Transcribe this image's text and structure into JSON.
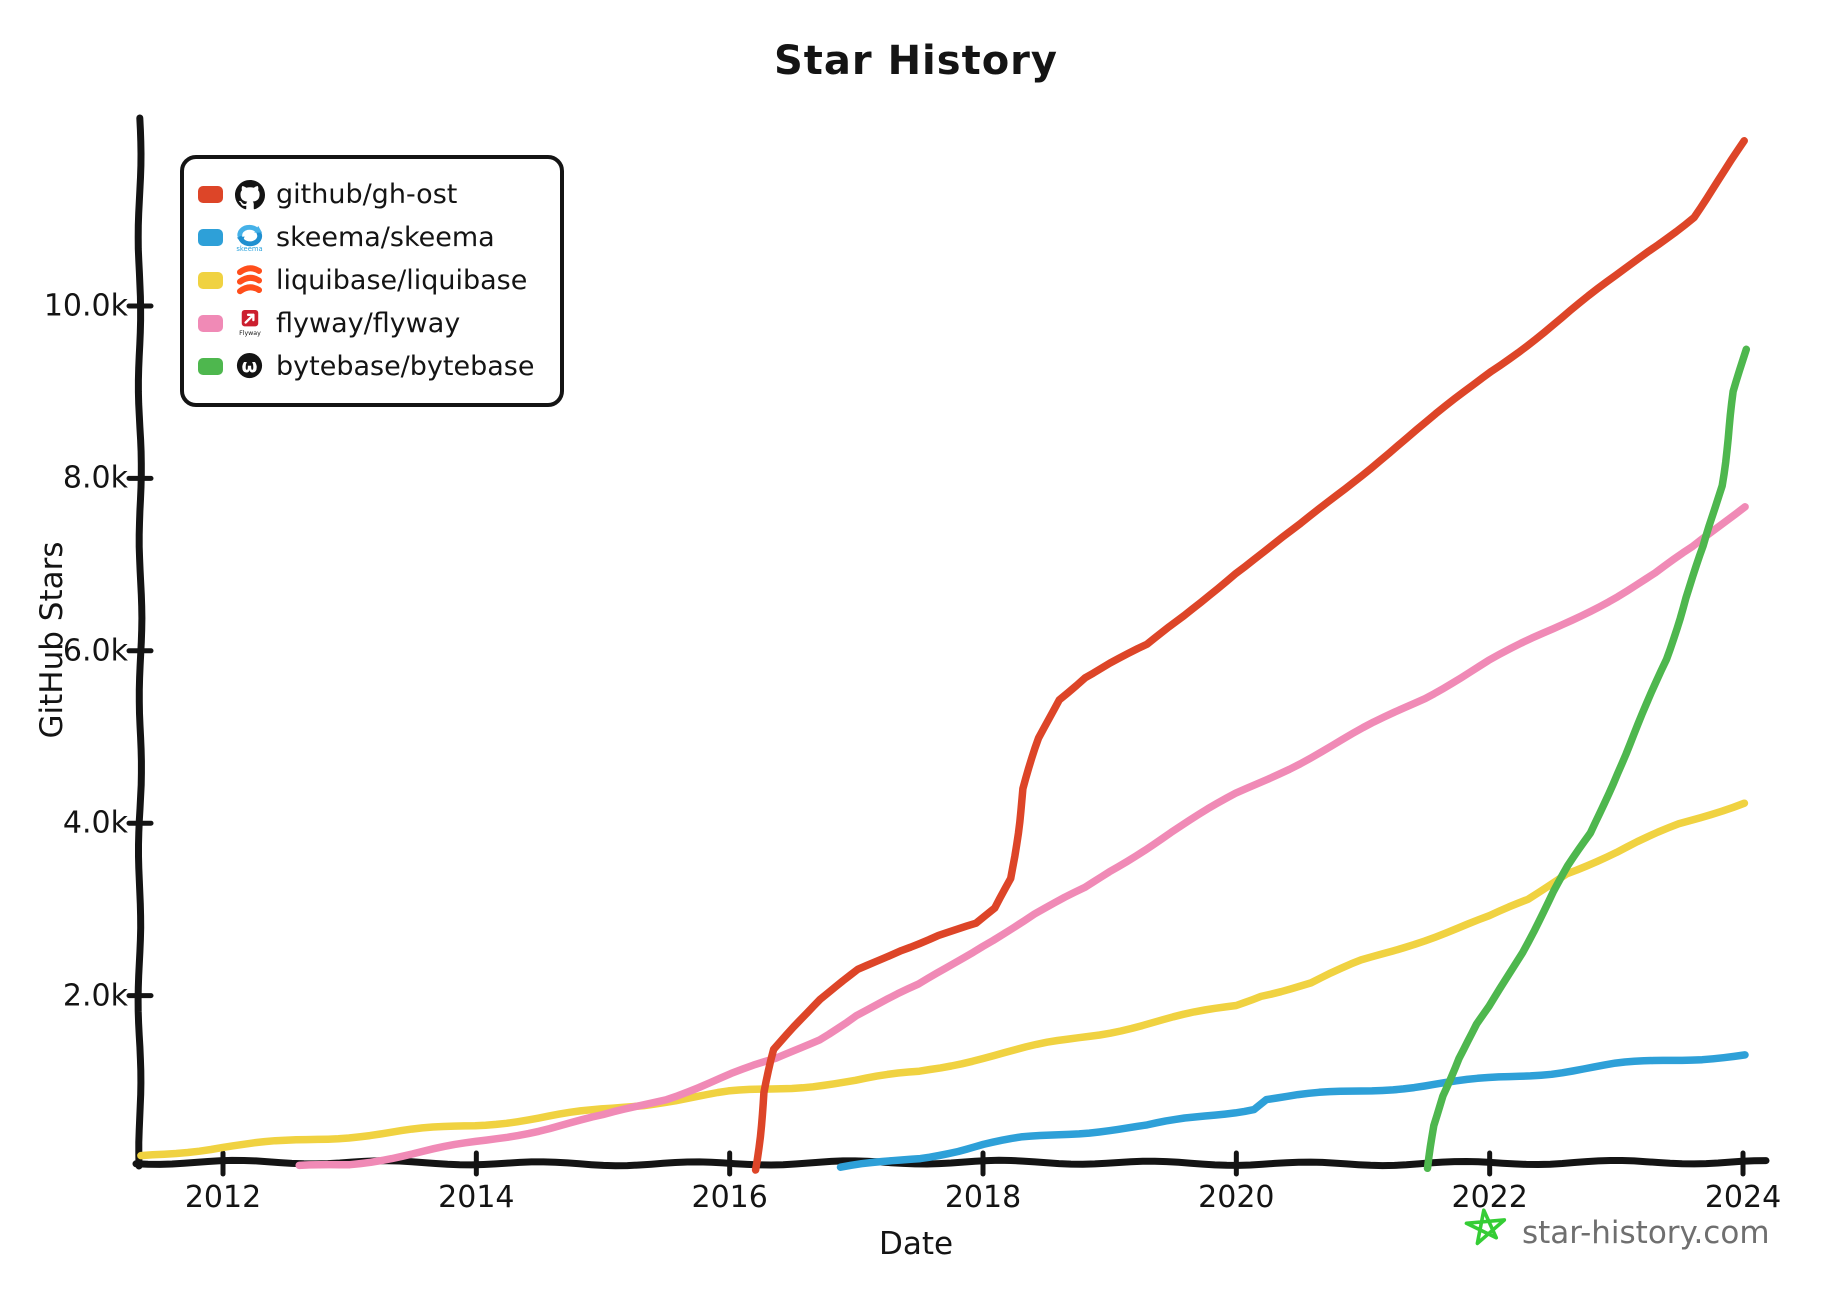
{
  "title": "Star History",
  "axes": {
    "x_label": "Date",
    "y_label": "GitHub Stars",
    "x_ticks": [
      {
        "value": 2012,
        "label": "2012"
      },
      {
        "value": 2014,
        "label": "2014"
      },
      {
        "value": 2016,
        "label": "2016"
      },
      {
        "value": 2018,
        "label": "2018"
      },
      {
        "value": 2020,
        "label": "2020"
      },
      {
        "value": 2022,
        "label": "2022"
      },
      {
        "value": 2024,
        "label": "2024"
      }
    ],
    "y_ticks": [
      {
        "value": 2000,
        "label": "2.0k"
      },
      {
        "value": 4000,
        "label": "4.0k"
      },
      {
        "value": 6000,
        "label": "6.0k"
      },
      {
        "value": 8000,
        "label": "8.0k"
      },
      {
        "value": 10000,
        "label": "10.0k"
      }
    ],
    "x_range": [
      2011.35,
      2024.16
    ],
    "y_range": [
      0,
      12100
    ],
    "axis_color": "#141414"
  },
  "watermark": {
    "text": "star-history.com",
    "text_color": "#6f6f6f",
    "star_color": "#35cd35"
  },
  "chart_data": {
    "type": "line",
    "title": "Star History",
    "xlabel": "Date",
    "ylabel": "GitHub Stars",
    "x_unit": "year",
    "y_unit": "github stars",
    "grid": false,
    "legend_position": "top-left",
    "style": "hand-drawn (xkcd)",
    "series": [
      {
        "name": "github/gh-ost",
        "color": "#dd4528",
        "icon": "github-octocat",
        "points": [
          [
            2016.2,
            0
          ],
          [
            2016.27,
            900
          ],
          [
            2016.35,
            1400
          ],
          [
            2016.5,
            1650
          ],
          [
            2016.7,
            1950
          ],
          [
            2017,
            2300
          ],
          [
            2017.35,
            2550
          ],
          [
            2017.65,
            2720
          ],
          [
            2017.95,
            2830
          ],
          [
            2018.1,
            3000
          ],
          [
            2018.22,
            3350
          ],
          [
            2018.32,
            4400
          ],
          [
            2018.45,
            5000
          ],
          [
            2018.6,
            5450
          ],
          [
            2018.8,
            5700
          ],
          [
            2019,
            5850
          ],
          [
            2019.3,
            6050
          ],
          [
            2019.6,
            6400
          ],
          [
            2020,
            6900
          ],
          [
            2020.5,
            7450
          ],
          [
            2021,
            8050
          ],
          [
            2021.5,
            8650
          ],
          [
            2022,
            9250
          ],
          [
            2022.5,
            9800
          ],
          [
            2023,
            10350
          ],
          [
            2023.25,
            10650
          ],
          [
            2023.6,
            11050
          ],
          [
            2024.02,
            11900
          ]
        ]
      },
      {
        "name": "skeema/skeema",
        "color": "#2ea0d8",
        "icon": "skeema-logo",
        "points": [
          [
            2016.87,
            0
          ],
          [
            2017.2,
            60
          ],
          [
            2017.5,
            120
          ],
          [
            2017.8,
            200
          ],
          [
            2018,
            260
          ],
          [
            2018.3,
            330
          ],
          [
            2018.6,
            380
          ],
          [
            2019,
            440
          ],
          [
            2019.3,
            480
          ],
          [
            2019.6,
            560
          ],
          [
            2020,
            660
          ],
          [
            2020.15,
            700
          ],
          [
            2020.25,
            810
          ],
          [
            2020.5,
            845
          ],
          [
            2021,
            905
          ],
          [
            2021.5,
            970
          ],
          [
            2022,
            1040
          ],
          [
            2022.5,
            1110
          ],
          [
            2023,
            1195
          ],
          [
            2023.3,
            1230
          ],
          [
            2023.6,
            1260
          ],
          [
            2024.02,
            1300
          ]
        ]
      },
      {
        "name": "liquibase/liquibase",
        "color": "#f0d241",
        "icon": "liquibase-logo",
        "points": [
          [
            2011.35,
            120
          ],
          [
            2012,
            240
          ],
          [
            2012.5,
            300
          ],
          [
            2013,
            370
          ],
          [
            2013.5,
            440
          ],
          [
            2014,
            510
          ],
          [
            2014.5,
            590
          ],
          [
            2015,
            680
          ],
          [
            2015.5,
            780
          ],
          [
            2016,
            870
          ],
          [
            2016.5,
            930
          ],
          [
            2017,
            1000
          ],
          [
            2017.5,
            1110
          ],
          [
            2018,
            1280
          ],
          [
            2018.5,
            1440
          ],
          [
            2019,
            1590
          ],
          [
            2019.5,
            1750
          ],
          [
            2020,
            1900
          ],
          [
            2020.2,
            2020
          ],
          [
            2020.6,
            2150
          ],
          [
            2021,
            2400
          ],
          [
            2021.5,
            2650
          ],
          [
            2022,
            2900
          ],
          [
            2022.3,
            3100
          ],
          [
            2022.6,
            3420
          ],
          [
            2023,
            3650
          ],
          [
            2023.5,
            3980
          ],
          [
            2024.02,
            4250
          ]
        ]
      },
      {
        "name": "flyway/flyway",
        "color": "#f08ab6",
        "icon": "flyway-logo",
        "points": [
          [
            2012.6,
            20
          ],
          [
            2013,
            60
          ],
          [
            2013.5,
            170
          ],
          [
            2014,
            300
          ],
          [
            2014.5,
            440
          ],
          [
            2015,
            590
          ],
          [
            2015.5,
            800
          ],
          [
            2016,
            1080
          ],
          [
            2016.35,
            1250
          ],
          [
            2016.7,
            1500
          ],
          [
            2017,
            1780
          ],
          [
            2017.5,
            2120
          ],
          [
            2018,
            2600
          ],
          [
            2018.4,
            2950
          ],
          [
            2018.8,
            3250
          ],
          [
            2019,
            3450
          ],
          [
            2019.5,
            3900
          ],
          [
            2020,
            4330
          ],
          [
            2020.5,
            4700
          ],
          [
            2021,
            5080
          ],
          [
            2021.5,
            5450
          ],
          [
            2022,
            5880
          ],
          [
            2022.5,
            6250
          ],
          [
            2023,
            6650
          ],
          [
            2023.3,
            6900
          ],
          [
            2023.6,
            7200
          ],
          [
            2024.02,
            7700
          ]
        ]
      },
      {
        "name": "bytebase/bytebase",
        "color": "#4eb74e",
        "icon": "bytebase-logo",
        "points": [
          [
            2021.52,
            0
          ],
          [
            2021.56,
            500
          ],
          [
            2021.62,
            850
          ],
          [
            2021.75,
            1300
          ],
          [
            2021.9,
            1700
          ],
          [
            2022,
            1900
          ],
          [
            2022.25,
            2500
          ],
          [
            2022.5,
            3200
          ],
          [
            2022.62,
            3500
          ],
          [
            2022.8,
            3900
          ],
          [
            2023,
            4600
          ],
          [
            2023.25,
            5400
          ],
          [
            2023.4,
            5900
          ],
          [
            2023.55,
            6600
          ],
          [
            2023.7,
            7200
          ],
          [
            2023.83,
            7900
          ],
          [
            2023.93,
            9000
          ],
          [
            2024.02,
            9500
          ]
        ]
      }
    ]
  }
}
